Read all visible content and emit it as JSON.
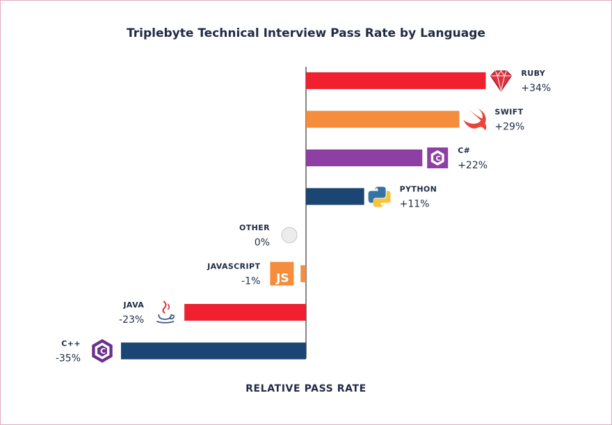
{
  "colors": {
    "text": "#1f2a44",
    "axis": "#444444",
    "frame": "#e2a9bf",
    "ruby": "#f0202e",
    "swift": "#f58d3c",
    "csharp": "#8e3fa3",
    "python": "#1b4572",
    "javascript": "#f58d3c",
    "java": "#f0202e",
    "cpp": "#1b4572"
  },
  "chart_data": {
    "type": "bar",
    "orientation": "horizontal",
    "title": "Triplebyte Technical Interview Pass Rate by Language",
    "xlabel": "RELATIVE PASS RATE",
    "ylabel": "",
    "xlim": [
      -35,
      34
    ],
    "grid": false,
    "legend": "none",
    "zero_line": true,
    "bars": [
      {
        "name": "RUBY",
        "value": 34,
        "label": "+34%",
        "color": "#f0202e",
        "icon": "ruby-gem-icon"
      },
      {
        "name": "SWIFT",
        "value": 29,
        "label": "+29%",
        "color": "#f58d3c",
        "icon": "swift-bird-icon"
      },
      {
        "name": "C#",
        "value": 22,
        "label": "+22%",
        "color": "#8e3fa3",
        "icon": "csharp-logo-icon"
      },
      {
        "name": "PYTHON",
        "value": 11,
        "label": "+11%",
        "color": "#1b4572",
        "icon": "python-logo-icon"
      },
      {
        "name": "OTHER",
        "value": 0,
        "label": "0%",
        "color": "#e8e8e8",
        "icon": "circle-icon"
      },
      {
        "name": "JAVASCRIPT",
        "value": -1,
        "label": "-1%",
        "color": "#f58d3c",
        "icon": "js-logo-icon"
      },
      {
        "name": "JAVA",
        "value": -23,
        "label": "-23%",
        "color": "#f0202e",
        "icon": "java-cup-icon"
      },
      {
        "name": "C++",
        "value": -35,
        "label": "-35%",
        "color": "#1b4572",
        "icon": "cpp-logo-icon"
      }
    ]
  }
}
